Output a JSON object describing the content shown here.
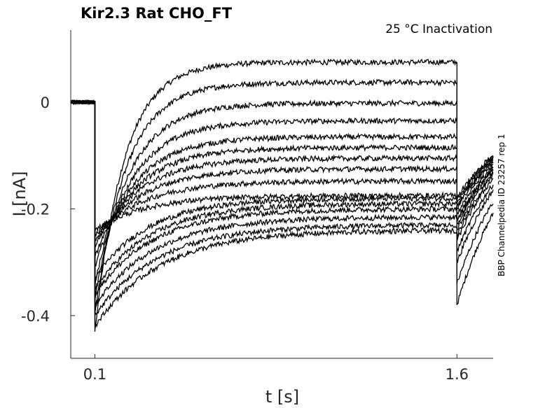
{
  "chart_data": {
    "type": "line",
    "title": "Kir2.3  Rat  CHO_FT",
    "subtitle": "25 °C  Inactivation",
    "side_label": "BBP Channelpedia ID 23257 rep 1",
    "xlabel": "t [s]",
    "ylabel": "I [nA]",
    "xlim": [
      -0.0,
      1.75
    ],
    "ylim": [
      -0.48,
      0.135
    ],
    "xticks": [
      {
        "value": 0.1,
        "label": "0.1"
      },
      {
        "value": 1.6,
        "label": "1.6"
      }
    ],
    "yticks": [
      {
        "value": 0,
        "label": "0"
      },
      {
        "value": -0.2,
        "label": "-0.2"
      },
      {
        "value": -0.4,
        "label": "-0.4"
      }
    ],
    "grid": false,
    "pulse_start": 0.1,
    "pulse_end": 1.6,
    "baseline_current": 0.0,
    "series": [
      {
        "steady": 0.075,
        "onset": -0.43,
        "tail": -0.38
      },
      {
        "steady": 0.037,
        "onset": -0.4,
        "tail": -0.34
      },
      {
        "steady": -0.002,
        "onset": -0.37,
        "tail": -0.3
      },
      {
        "steady": -0.035,
        "onset": -0.34,
        "tail": -0.28
      },
      {
        "steady": -0.065,
        "onset": -0.31,
        "tail": -0.26
      },
      {
        "steady": -0.085,
        "onset": -0.29,
        "tail": -0.25
      },
      {
        "steady": -0.105,
        "onset": -0.27,
        "tail": -0.24
      },
      {
        "steady": -0.125,
        "onset": -0.26,
        "tail": -0.23
      },
      {
        "steady": -0.148,
        "onset": -0.25,
        "tail": -0.225
      },
      {
        "steady": -0.175,
        "onset": -0.24,
        "tail": -0.22
      },
      {
        "steady": -0.18,
        "onset": -0.33,
        "tail": -0.21
      },
      {
        "steady": -0.19,
        "onset": -0.35,
        "tail": -0.2
      },
      {
        "steady": -0.2,
        "onset": -0.36,
        "tail": -0.195
      },
      {
        "steady": -0.215,
        "onset": -0.38,
        "tail": -0.19
      },
      {
        "steady": -0.23,
        "onset": -0.4,
        "tail": -0.185
      },
      {
        "steady": -0.24,
        "onset": -0.42,
        "tail": -0.18
      }
    ]
  }
}
